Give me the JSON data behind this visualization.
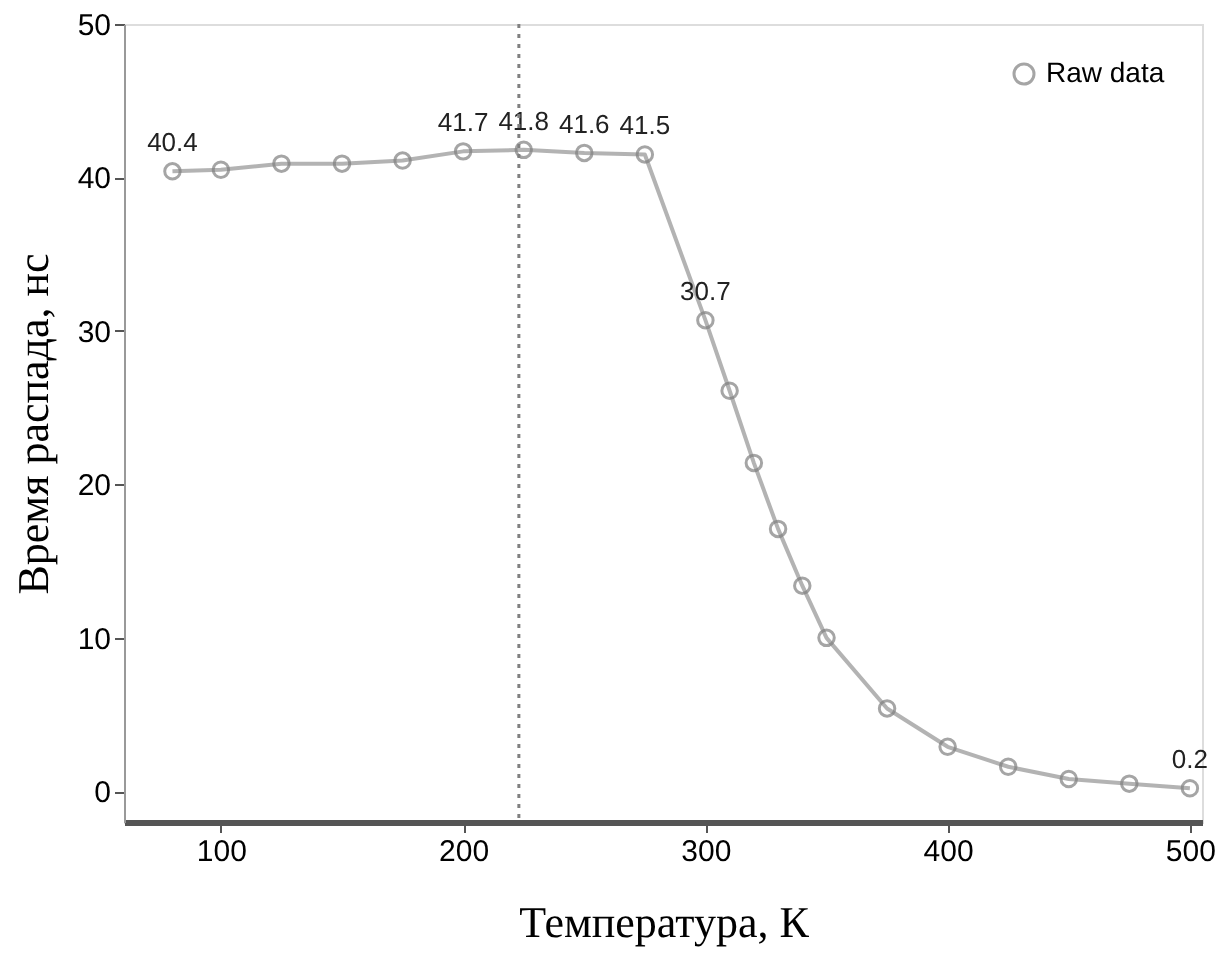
{
  "chart_data": {
    "type": "line",
    "xlabel": "Температура, К",
    "ylabel": "Время распада, нс",
    "x": [
      80,
      100,
      125,
      150,
      175,
      200,
      225,
      250,
      275,
      300,
      310,
      320,
      330,
      340,
      350,
      375,
      400,
      425,
      450,
      475,
      500
    ],
    "series": [
      {
        "name": "Raw data",
        "color": "#808080",
        "values": [
          40.4,
          40.5,
          40.9,
          40.9,
          41.1,
          41.7,
          41.8,
          41.6,
          41.5,
          30.7,
          26.1,
          21.4,
          17.1,
          13.4,
          10.0,
          5.4,
          2.9,
          1.6,
          0.8,
          0.5,
          0.2
        ],
        "value_labels": [
          "40.4",
          null,
          null,
          null,
          null,
          "41.7",
          "41.8",
          "41.6",
          "41.5",
          "30.7",
          null,
          null,
          null,
          null,
          null,
          null,
          null,
          null,
          null,
          null,
          "0.2"
        ]
      }
    ],
    "xlim": [
      60,
      505
    ],
    "ylim": [
      -2,
      50
    ],
    "xticks": [
      100,
      200,
      300,
      400,
      500
    ],
    "yticks": [
      0,
      10,
      20,
      30,
      40,
      50
    ],
    "ref_lines": [
      {
        "axis": "x",
        "value": 223,
        "line_style": "dotted",
        "color": "#808080"
      }
    ],
    "marker": "circle",
    "line_style": "solid",
    "grid": false,
    "legend": "top right"
  }
}
